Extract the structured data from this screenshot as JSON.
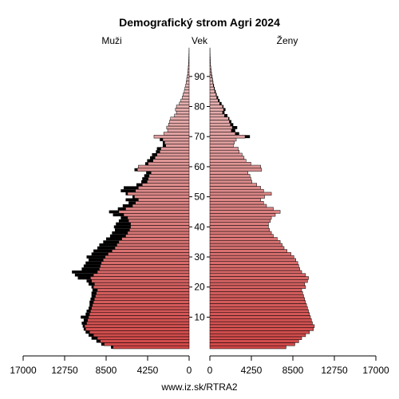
{
  "chart_data": {
    "type": "bar",
    "title": "Demografický strom Agri 2024",
    "left_label": "Muži",
    "center_label": "Vek",
    "right_label": "Ženy",
    "source": "www.iz.sk/RTRA2",
    "age_ticks": [
      "10",
      "20",
      "30",
      "40",
      "50",
      "60",
      "70",
      "80",
      "90"
    ],
    "age_tick_values": [
      10,
      20,
      30,
      40,
      50,
      60,
      70,
      80,
      90
    ],
    "x_ticks_left": [
      "17000",
      "12750",
      "8500",
      "4250",
      "0"
    ],
    "x_ticks_right": [
      "0",
      "4250",
      "8500",
      "12750",
      "17000"
    ],
    "x_tick_values": [
      17000,
      12750,
      8500,
      4250,
      0
    ],
    "xlim": [
      0,
      17000
    ],
    "ylim": [
      0,
      100
    ],
    "colors": {
      "male_young": "#d24848",
      "male_old": "#e8c6c6",
      "female_young": "#d24848",
      "female_old": "#e8c6c6",
      "surplus": "#000000",
      "outline": "#000000"
    },
    "ages": [
      0,
      1,
      2,
      3,
      4,
      5,
      6,
      7,
      8,
      9,
      10,
      11,
      12,
      13,
      14,
      15,
      16,
      17,
      18,
      19,
      20,
      21,
      22,
      23,
      24,
      25,
      26,
      27,
      28,
      29,
      30,
      31,
      32,
      33,
      34,
      35,
      36,
      37,
      38,
      39,
      40,
      41,
      42,
      43,
      44,
      45,
      46,
      47,
      48,
      49,
      50,
      51,
      52,
      53,
      54,
      55,
      56,
      57,
      58,
      59,
      60,
      61,
      62,
      63,
      64,
      65,
      66,
      67,
      68,
      69,
      70,
      71,
      72,
      73,
      74,
      75,
      76,
      77,
      78,
      79,
      80,
      81,
      82,
      83,
      84,
      85,
      86,
      87,
      88,
      89,
      90,
      91,
      92,
      93,
      94,
      95,
      96,
      97,
      98,
      99
    ],
    "male": [
      8000,
      9000,
      9500,
      10000,
      10300,
      10600,
      10800,
      10900,
      11000,
      10800,
      11100,
      10600,
      10500,
      10300,
      10200,
      10200,
      10100,
      10000,
      10000,
      9900,
      10000,
      10300,
      10500,
      11400,
      11700,
      12000,
      11000,
      10800,
      10600,
      10300,
      10500,
      10000,
      9800,
      9400,
      9200,
      8800,
      8500,
      8100,
      7900,
      7600,
      7700,
      7500,
      7200,
      7000,
      7800,
      8200,
      7300,
      6800,
      6200,
      6500,
      5800,
      6500,
      7000,
      6700,
      5400,
      4900,
      4800,
      4600,
      4400,
      5600,
      5200,
      4500,
      4300,
      4000,
      3800,
      3400,
      3300,
      2700,
      2700,
      3000,
      3600,
      2600,
      2200,
      2300,
      2100,
      2000,
      1900,
      1500,
      1300,
      1400,
      1300,
      1000,
      850,
      700,
      620,
      500,
      430,
      350,
      300,
      250,
      200,
      150,
      120,
      90,
      70,
      50,
      35,
      25,
      15,
      10
    ],
    "female": [
      7800,
      8700,
      9100,
      9400,
      9800,
      10200,
      10600,
      10700,
      10500,
      10400,
      10300,
      10200,
      10100,
      10000,
      9900,
      9800,
      9700,
      9600,
      9500,
      9400,
      9800,
      9700,
      10000,
      10100,
      9800,
      9400,
      9200,
      9100,
      9000,
      8800,
      8600,
      8300,
      7900,
      7600,
      7400,
      7200,
      6900,
      6500,
      6300,
      6100,
      6000,
      6000,
      6200,
      6300,
      6700,
      7200,
      6500,
      5800,
      5500,
      5200,
      5600,
      6300,
      5500,
      5200,
      4800,
      4300,
      4200,
      4100,
      3900,
      5300,
      5200,
      4200,
      3700,
      3500,
      3300,
      3000,
      2900,
      2400,
      2500,
      2700,
      4100,
      3000,
      2600,
      2800,
      2400,
      2200,
      2000,
      1800,
      1500,
      1600,
      1400,
      1200,
      1000,
      850,
      700,
      600,
      500,
      420,
      350,
      300,
      250,
      190,
      150,
      110,
      80,
      60,
      45,
      30,
      20,
      12
    ]
  }
}
